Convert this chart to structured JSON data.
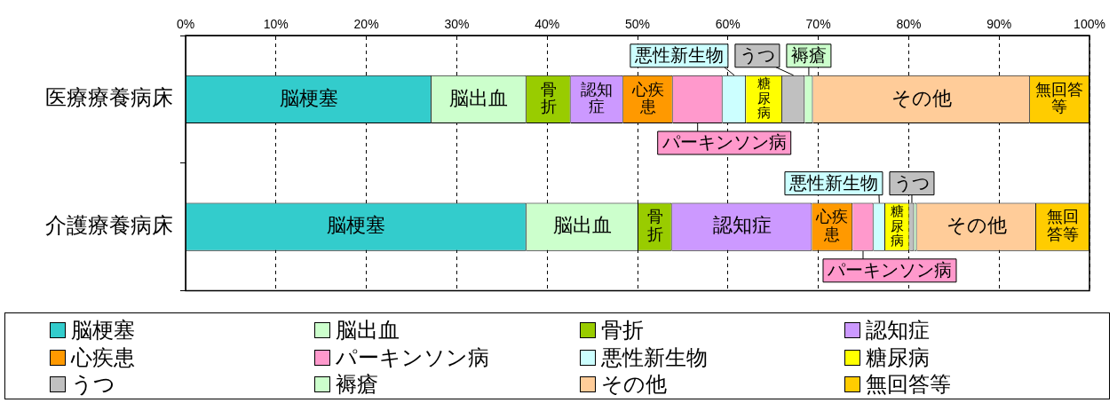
{
  "chart_data": {
    "type": "bar",
    "orientation": "horizontal",
    "stacked": true,
    "categories": [
      "医療療養病床",
      "介護療養病床"
    ],
    "xlim": [
      0,
      100
    ],
    "xticks": [
      {
        "value": 0,
        "label": "0%"
      },
      {
        "value": 10,
        "label": "10%"
      },
      {
        "value": 20,
        "label": "20%"
      },
      {
        "value": 30,
        "label": "30%"
      },
      {
        "value": 40,
        "label": "40%"
      },
      {
        "value": 50,
        "label": "50%"
      },
      {
        "value": 60,
        "label": "60%"
      },
      {
        "value": 70,
        "label": "70%"
      },
      {
        "value": 80,
        "label": "80%"
      },
      {
        "value": 90,
        "label": "90%"
      },
      {
        "value": 100,
        "label": "100%"
      }
    ],
    "grid": "x",
    "legend": "bottom",
    "series": [
      {
        "name": "脳梗塞",
        "color": "#33cccc",
        "values": [
          27.2,
          37.7
        ],
        "value_labels": [
          "脳梗塞",
          "脳梗塞"
        ]
      },
      {
        "name": "脳出血",
        "color": "#ccffcc",
        "values": [
          10.5,
          12.4
        ],
        "value_labels": [
          "脳出血",
          "脳出血"
        ]
      },
      {
        "name": "骨折",
        "color": "#99cc00",
        "values": [
          4.9,
          3.7
        ],
        "value_labels": [
          "骨折",
          "骨折"
        ]
      },
      {
        "name": "認知症",
        "color": "#cc99ff",
        "values": [
          5.8,
          15.5
        ],
        "value_labels": [
          "認知症",
          "認知症"
        ]
      },
      {
        "name": "心疾患",
        "color": "#ff9900",
        "values": [
          5.5,
          4.5
        ],
        "value_labels": [
          "心疾患",
          "心疾患"
        ]
      },
      {
        "name": "パーキンソン病",
        "color": "#ff99cc",
        "values": [
          5.5,
          2.3
        ],
        "value_labels": [
          "パーキンソン病",
          "パーキンソン病"
        ]
      },
      {
        "name": "悪性新生物",
        "color": "#ccffff",
        "values": [
          2.6,
          1.3
        ],
        "value_labels": [
          "悪性新生物",
          "悪性新生物"
        ]
      },
      {
        "name": "糖尿病",
        "color": "#ffff00",
        "values": [
          4.0,
          2.7
        ],
        "value_labels": [
          "糖尿病",
          "糖尿病"
        ]
      },
      {
        "name": "うつ",
        "color": "#c0c0c0",
        "values": [
          2.5,
          0.5
        ],
        "value_labels": [
          "うつ",
          "うつ"
        ]
      },
      {
        "name": "褥瘡",
        "color": "#ccffcc",
        "values": [
          0.9,
          0.3
        ],
        "value_labels": [
          "褥瘡",
          null
        ]
      },
      {
        "name": "その他",
        "color": "#ffcc99",
        "values": [
          24.0,
          13.2
        ],
        "value_labels": [
          "その他",
          "その他"
        ]
      },
      {
        "name": "無回答等",
        "color": "#ffcc00",
        "values": [
          6.6,
          5.9
        ],
        "value_labels": [
          "無回答等",
          "無回答等"
        ]
      }
    ]
  }
}
